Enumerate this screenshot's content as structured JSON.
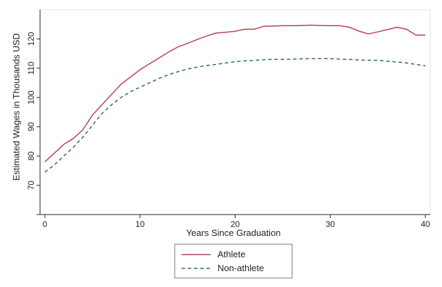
{
  "chart_data": {
    "type": "line",
    "xlabel": "Years Since Graduation",
    "ylabel": "Estimated Wages in Thousands USD",
    "xlim": [
      0,
      40
    ],
    "ylim": [
      60,
      130
    ],
    "xticks": [
      "0",
      "10",
      "20",
      "30",
      "40"
    ],
    "yticks": [
      "70",
      "80",
      "90",
      "100",
      "110",
      "120"
    ],
    "grid": false,
    "legend_position": "bottom-center",
    "series": [
      {
        "name": "Athlete",
        "color": "#b5424d",
        "style": "solid",
        "x": [
          0,
          1,
          2,
          3,
          4,
          5,
          6,
          7,
          8,
          9,
          10,
          11,
          12,
          13,
          14,
          15,
          16,
          17,
          18,
          19,
          20,
          21,
          22,
          23,
          24,
          25,
          26,
          27,
          28,
          29,
          30,
          31,
          32,
          33,
          34,
          35,
          36,
          37,
          38,
          39,
          40
        ],
        "y": [
          78,
          81,
          84,
          86,
          89,
          94,
          97.5,
          101,
          104.5,
          107,
          109.5,
          111.5,
          113.5,
          115.5,
          117.3,
          118.5,
          119.8,
          121,
          122,
          122.3,
          122.6,
          123.3,
          123.3,
          124.3,
          124.4,
          124.5,
          124.5,
          124.6,
          124.7,
          124.6,
          124.5,
          124.5,
          124,
          122.7,
          121.7,
          122.4,
          123.2,
          124,
          123.3,
          121.3,
          121.3
        ]
      },
      {
        "name": "Non-athlete",
        "color": "#2e6b63",
        "style": "dashed",
        "x": [
          0,
          1,
          2,
          3,
          4,
          5,
          6,
          7,
          8,
          9,
          10,
          11,
          12,
          13,
          14,
          15,
          16,
          17,
          18,
          19,
          20,
          21,
          22,
          23,
          24,
          25,
          26,
          27,
          28,
          29,
          30,
          31,
          32,
          33,
          34,
          35,
          36,
          37,
          38,
          39,
          40
        ],
        "y": [
          74.5,
          77,
          80,
          83,
          86.5,
          90.5,
          94.5,
          97.5,
          100,
          102,
          103.5,
          105,
          106.5,
          107.8,
          108.8,
          109.7,
          110.4,
          110.9,
          111.3,
          111.8,
          112.2,
          112.5,
          112.7,
          112.9,
          113,
          113,
          113.1,
          113.2,
          113.3,
          113.3,
          113.3,
          113.1,
          113,
          112.8,
          112.7,
          112.7,
          112.4,
          112.1,
          111.8,
          111.3,
          110.8
        ]
      }
    ]
  }
}
